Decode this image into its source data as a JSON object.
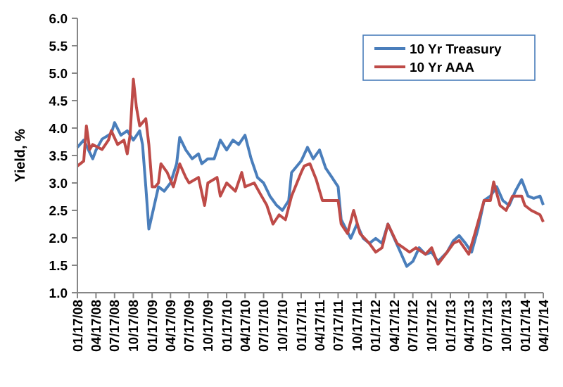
{
  "chart_data": {
    "type": "line",
    "ylabel": "Yield, %",
    "ylim": [
      1.0,
      6.0
    ],
    "yticks": [
      {
        "value": 1,
        "label": "1.0"
      },
      {
        "value": 1.5,
        "label": "1.5"
      },
      {
        "value": 2,
        "label": "2.0"
      },
      {
        "value": 2.5,
        "label": "2.5"
      },
      {
        "value": 3,
        "label": "3.0"
      },
      {
        "value": 3.5,
        "label": "3.5"
      },
      {
        "value": 4,
        "label": "4.0"
      },
      {
        "value": 4.5,
        "label": "4.5"
      },
      {
        "value": 5,
        "label": "5.0"
      },
      {
        "value": 5.5,
        "label": "5.5"
      },
      {
        "value": 6,
        "label": "6.0"
      }
    ],
    "xlim": [
      "2008-01-17",
      "2014-04-17"
    ],
    "xticks": [
      {
        "value": "2008-01-17",
        "label": "01/17/08"
      },
      {
        "value": "2008-04-17",
        "label": "04/17/08"
      },
      {
        "value": "2008-07-17",
        "label": "07/17/08"
      },
      {
        "value": "2008-10-17",
        "label": "10/17/08"
      },
      {
        "value": "2009-01-17",
        "label": "01/17/09"
      },
      {
        "value": "2009-04-17",
        "label": "04/17/09"
      },
      {
        "value": "2009-07-17",
        "label": "07/17/09"
      },
      {
        "value": "2009-10-17",
        "label": "10/17/09"
      },
      {
        "value": "2010-01-17",
        "label": "01/17/10"
      },
      {
        "value": "2010-04-17",
        "label": "04/17/10"
      },
      {
        "value": "2010-07-17",
        "label": "07/17/10"
      },
      {
        "value": "2010-10-17",
        "label": "10/17/10"
      },
      {
        "value": "2011-01-17",
        "label": "01/17/11"
      },
      {
        "value": "2011-04-17",
        "label": "04/17/11"
      },
      {
        "value": "2011-07-17",
        "label": "07/17/11"
      },
      {
        "value": "2011-10-17",
        "label": "10/17/11"
      },
      {
        "value": "2012-01-17",
        "label": "01/17/12"
      },
      {
        "value": "2012-04-17",
        "label": "04/17/12"
      },
      {
        "value": "2012-07-17",
        "label": "07/17/12"
      },
      {
        "value": "2012-10-17",
        "label": "10/17/12"
      },
      {
        "value": "2013-01-17",
        "label": "01/17/13"
      },
      {
        "value": "2013-04-17",
        "label": "04/17/13"
      },
      {
        "value": "2013-07-17",
        "label": "07/17/13"
      },
      {
        "value": "2013-10-17",
        "label": "10/17/13"
      },
      {
        "value": "2014-01-17",
        "label": "01/17/14"
      },
      {
        "value": "2014-04-17",
        "label": "04/17/14"
      }
    ],
    "legend": "top right",
    "grid": false,
    "series": [
      {
        "name": "10 Yr Treasury",
        "color": "#4a7ebb",
        "x": [
          "2008-01-17",
          "2008-02-17",
          "2008-04-01",
          "2008-04-17",
          "2008-05-17",
          "2008-07-01",
          "2008-07-17",
          "2008-08-17",
          "2008-09-17",
          "2008-10-17",
          "2008-11-17",
          "2008-12-01",
          "2008-12-17",
          "2009-01-01",
          "2009-01-17",
          "2009-02-17",
          "2009-03-17",
          "2009-04-17",
          "2009-05-17",
          "2009-06-01",
          "2009-07-01",
          "2009-08-01",
          "2009-09-01",
          "2009-09-17",
          "2009-10-17",
          "2009-11-17",
          "2009-12-17",
          "2010-01-17",
          "2010-02-17",
          "2010-03-17",
          "2010-04-17",
          "2010-05-17",
          "2010-06-17",
          "2010-07-17",
          "2010-08-17",
          "2010-09-17",
          "2010-10-17",
          "2010-11-17",
          "2010-12-01",
          "2011-01-17",
          "2011-02-17",
          "2011-03-17",
          "2011-04-17",
          "2011-05-17",
          "2011-06-17",
          "2011-07-17",
          "2011-08-01",
          "2011-09-17",
          "2011-10-17",
          "2011-11-17",
          "2011-12-17",
          "2012-01-17",
          "2012-02-17",
          "2012-03-17",
          "2012-04-17",
          "2012-05-17",
          "2012-06-17",
          "2012-07-17",
          "2012-08-17",
          "2012-09-17",
          "2012-10-17",
          "2012-11-17",
          "2013-01-01",
          "2013-02-01",
          "2013-03-01",
          "2013-04-01",
          "2013-05-01",
          "2013-06-01",
          "2013-07-01",
          "2013-08-01",
          "2013-09-01",
          "2013-10-01",
          "2013-11-01",
          "2013-12-01",
          "2014-01-01",
          "2014-02-01",
          "2014-03-01",
          "2014-04-01",
          "2014-04-17"
        ],
        "values": [
          3.65,
          3.78,
          3.44,
          3.6,
          3.8,
          3.9,
          4.1,
          3.87,
          3.95,
          3.78,
          3.95,
          3.7,
          2.93,
          2.16,
          2.42,
          2.93,
          2.85,
          3.0,
          3.35,
          3.83,
          3.6,
          3.44,
          3.53,
          3.35,
          3.44,
          3.44,
          3.78,
          3.6,
          3.78,
          3.7,
          3.87,
          3.44,
          3.1,
          3.0,
          2.76,
          2.6,
          2.5,
          2.68,
          3.19,
          3.4,
          3.65,
          3.44,
          3.6,
          3.27,
          3.1,
          2.93,
          2.33,
          1.99,
          2.25,
          1.99,
          1.9,
          1.99,
          1.9,
          2.25,
          1.99,
          1.74,
          1.48,
          1.57,
          1.82,
          1.7,
          1.74,
          1.57,
          1.74,
          1.95,
          2.04,
          1.9,
          1.74,
          2.16,
          2.68,
          2.76,
          2.93,
          2.68,
          2.59,
          2.85,
          3.06,
          2.76,
          2.72,
          2.76,
          2.6
        ]
      },
      {
        "name": "10 Yr AAA",
        "color": "#be4b48",
        "x": [
          "2008-01-17",
          "2008-02-17",
          "2008-03-01",
          "2008-03-17",
          "2008-04-01",
          "2008-05-17",
          "2008-06-17",
          "2008-07-01",
          "2008-08-01",
          "2008-09-01",
          "2008-09-17",
          "2008-10-01",
          "2008-10-17",
          "2008-11-01",
          "2008-11-17",
          "2008-12-17",
          "2009-01-01",
          "2009-01-17",
          "2009-02-01",
          "2009-02-17",
          "2009-03-01",
          "2009-04-01",
          "2009-05-01",
          "2009-06-01",
          "2009-07-01",
          "2009-07-17",
          "2009-09-01",
          "2009-10-01",
          "2009-10-17",
          "2009-12-01",
          "2009-12-17",
          "2010-01-17",
          "2010-03-01",
          "2010-04-01",
          "2010-04-17",
          "2010-06-01",
          "2010-07-01",
          "2010-08-01",
          "2010-09-01",
          "2010-10-01",
          "2010-11-01",
          "2010-12-01",
          "2011-01-17",
          "2011-02-01",
          "2011-03-01",
          "2011-04-01",
          "2011-05-01",
          "2011-06-17",
          "2011-07-17",
          "2011-08-01",
          "2011-09-01",
          "2011-10-01",
          "2011-11-01",
          "2011-12-17",
          "2012-01-17",
          "2012-02-17",
          "2012-03-17",
          "2012-05-01",
          "2012-06-01",
          "2012-07-01",
          "2012-08-01",
          "2012-09-17",
          "2012-10-17",
          "2012-11-17",
          "2013-01-01",
          "2013-02-01",
          "2013-03-01",
          "2013-04-17",
          "2013-05-17",
          "2013-07-01",
          "2013-08-01",
          "2013-08-17",
          "2013-09-17",
          "2013-10-17",
          "2013-11-17",
          "2014-01-01",
          "2014-01-17",
          "2014-02-17",
          "2014-04-01",
          "2014-04-17"
        ],
        "values": [
          3.31,
          3.4,
          4.04,
          3.61,
          3.7,
          3.61,
          3.78,
          3.95,
          3.7,
          3.78,
          3.53,
          3.87,
          4.89,
          4.38,
          4.04,
          4.17,
          3.7,
          2.93,
          2.93,
          3.0,
          3.35,
          3.19,
          2.93,
          3.35,
          3.1,
          3.0,
          3.1,
          2.59,
          3.0,
          3.1,
          2.76,
          3.0,
          2.85,
          3.19,
          2.93,
          3.0,
          2.8,
          2.6,
          2.25,
          2.42,
          2.33,
          2.76,
          3.19,
          3.31,
          3.35,
          3.06,
          2.68,
          2.68,
          2.68,
          2.25,
          2.08,
          2.5,
          2.08,
          1.9,
          1.74,
          1.82,
          2.25,
          1.9,
          1.82,
          1.74,
          1.82,
          1.7,
          1.82,
          1.52,
          1.74,
          1.9,
          1.95,
          1.7,
          2.08,
          2.68,
          2.68,
          3.02,
          2.59,
          2.5,
          2.76,
          2.76,
          2.59,
          2.5,
          2.42,
          2.29
        ]
      }
    ]
  }
}
